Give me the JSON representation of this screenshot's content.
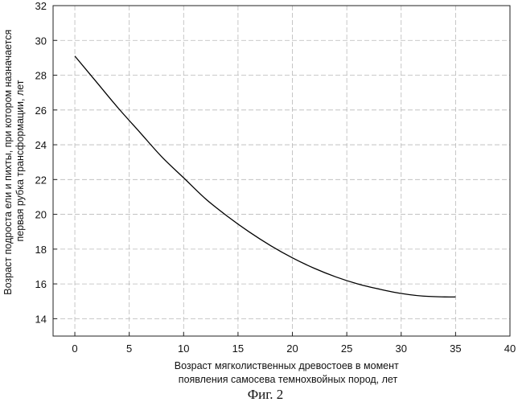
{
  "chart_data": {
    "type": "line",
    "title": "",
    "xlabel": [
      "Возраст мягколиственных древостоев в момент",
      "появления  самосева темнохвойных пород, лет"
    ],
    "ylabel": [
      "Возраст подроста ели и пихты, при котором назначается",
      "первая рубка трансформации, лет"
    ],
    "xlim": [
      -2,
      40
    ],
    "ylim": [
      13,
      32
    ],
    "xticks": [
      0,
      5,
      10,
      15,
      20,
      25,
      30,
      35,
      40
    ],
    "yticks": [
      14,
      16,
      18,
      20,
      22,
      24,
      26,
      28,
      30,
      32
    ],
    "grid": true,
    "legend": "none",
    "line_color": "#000000",
    "series": [
      {
        "x": [
          0,
          2,
          4,
          6,
          8,
          10,
          12,
          14,
          16,
          18,
          20,
          22,
          24,
          26,
          28,
          30,
          32,
          34,
          35
        ],
        "y": [
          29.1,
          27.6,
          26.1,
          24.7,
          23.3,
          22.1,
          20.9,
          19.9,
          19.0,
          18.2,
          17.5,
          16.9,
          16.4,
          16.0,
          15.7,
          15.45,
          15.3,
          15.25,
          15.25
        ]
      }
    ]
  },
  "caption": "Фиг. 2"
}
